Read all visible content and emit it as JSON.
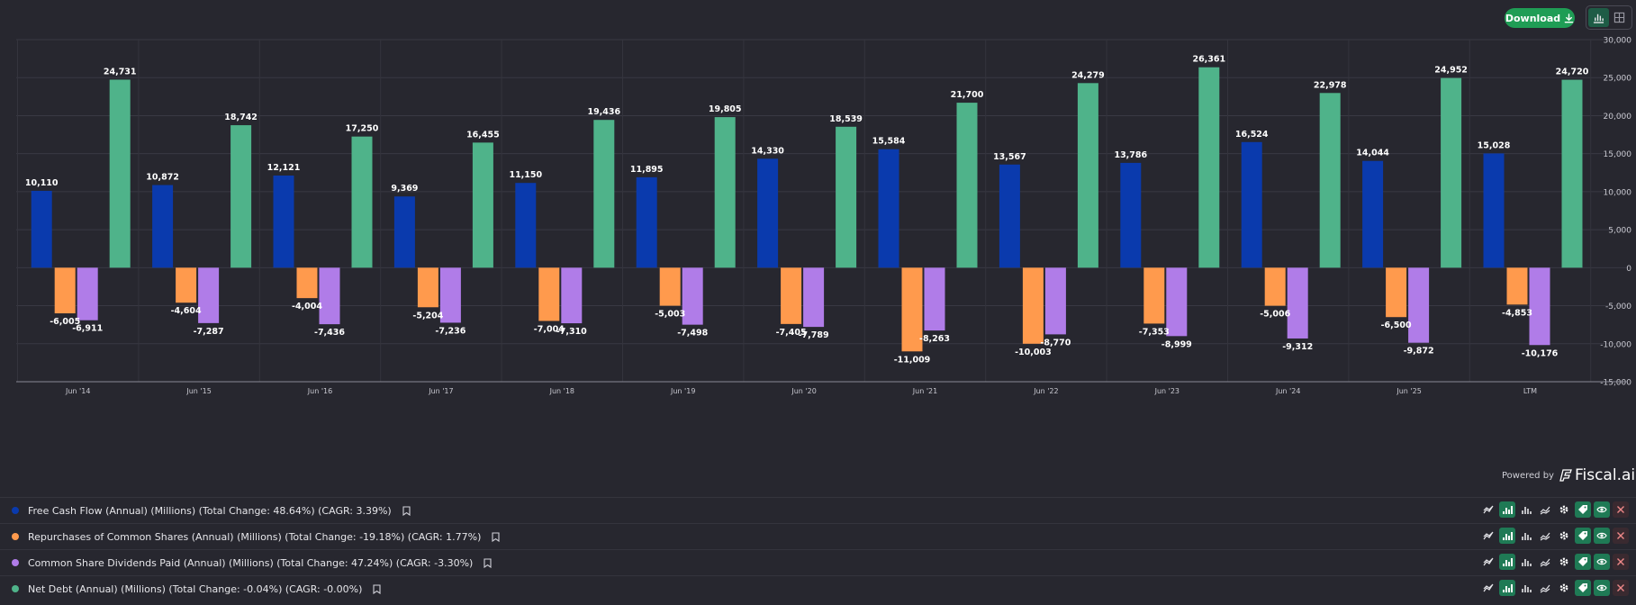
{
  "toolbar": {
    "download_label": "Download"
  },
  "branding": {
    "powered_by": "Powered by",
    "brand_name": "Fiscal.ai"
  },
  "chart_data": {
    "type": "bar",
    "categories": [
      "Jun '14",
      "Jun '15",
      "Jun '16",
      "Jun '17",
      "Jun '18",
      "Jun '19",
      "Jun '20",
      "Jun '21",
      "Jun '22",
      "Jun '23",
      "Jun '24",
      "Jun '25",
      "LTM"
    ],
    "ylim": [
      -15000,
      30000
    ],
    "yticks": [
      30000,
      25000,
      20000,
      15000,
      10000,
      5000,
      0,
      -5000,
      -10000,
      -15000
    ],
    "ytick_labels": [
      "30,000",
      "25,000",
      "20,000",
      "15,000",
      "10,000",
      "5,000",
      "0",
      "-5,000",
      "-10,000",
      "-15,000"
    ],
    "grid": true,
    "series": [
      {
        "name": "Free Cash Flow (Annual) (Millions) (Total Change: 48.64%) (CAGR: 3.39%)",
        "color": "#0a3aad",
        "values": [
          10110,
          10872,
          12121,
          9369,
          11150,
          11895,
          14330,
          15584,
          13567,
          13786,
          16524,
          14044,
          15028
        ],
        "labels": [
          "10,110",
          "10,872",
          "12,121",
          "9,369",
          "11,150",
          "11,895",
          "14,330",
          "15,584",
          "13,567",
          "13,786",
          "16,524",
          "14,044",
          "15,028"
        ]
      },
      {
        "name": "Repurchases of Common Shares (Annual) (Millions) (Total Change: -19.18%) (CAGR: 1.77%)",
        "color": "#ff9a4d",
        "values": [
          -6005,
          -4604,
          -4004,
          -5204,
          -7004,
          -5003,
          -7405,
          -11009,
          -10003,
          -7353,
          -5006,
          -6500,
          -4853
        ],
        "labels": [
          "-6,005",
          "-4,604",
          "-4,004",
          "-5,204",
          "-7,004",
          "-5,003",
          "-7,405",
          "-11,009",
          "-10,003",
          "-7,353",
          "-5,006",
          "-6,500",
          "-4,853"
        ]
      },
      {
        "name": "Common Share Dividends Paid (Annual) (Millions) (Total Change: 47.24%) (CAGR: -3.30%)",
        "color": "#b07ce8",
        "values": [
          -6911,
          -7287,
          -7436,
          -7236,
          -7310,
          -7498,
          -7789,
          -8263,
          -8770,
          -8999,
          -9312,
          -9872,
          -10176
        ],
        "labels": [
          "-6,911",
          "-7,287",
          "-7,436",
          "-7,236",
          "-7,310",
          "-7,498",
          "-7,789",
          "-8,263",
          "-8,770",
          "-8,999",
          "-9,312",
          "-9,872",
          "-10,176"
        ]
      },
      {
        "name": "Net Debt (Annual) (Millions) (Total Change: -0.04%) (CAGR: -0.00%)",
        "color": "#4fb38a",
        "values": [
          24731,
          18742,
          17250,
          16455,
          19436,
          19805,
          18539,
          21700,
          24279,
          26361,
          22978,
          24952,
          24720
        ],
        "labels": [
          "24,731",
          "18,742",
          "17,250",
          "16,455",
          "19,436",
          "19,805",
          "18,539",
          "21,700",
          "24,279",
          "26,361",
          "22,978",
          "24,952",
          "24,720"
        ]
      }
    ]
  },
  "legend": [
    {
      "label": "Free Cash Flow (Annual) (Millions) (Total Change: 48.64%) (CAGR: 3.39%)",
      "color": "#0a3aad"
    },
    {
      "label": "Repurchases of Common Shares (Annual) (Millions) (Total Change: -19.18%) (CAGR: 1.77%)",
      "color": "#ff9a4d"
    },
    {
      "label": "Common Share Dividends Paid (Annual) (Millions) (Total Change: 47.24%) (CAGR: -3.30%)",
      "color": "#b07ce8"
    },
    {
      "label": "Net Debt (Annual) (Millions) (Total Change: -0.04%) (CAGR: -0.00%)",
      "color": "#4fb38a"
    }
  ],
  "row_tool_icons": [
    "trend-icon",
    "bar-chart-icon",
    "column-chart-icon",
    "line-chart-icon",
    "settings-icon",
    "tag-icon",
    "eye-icon",
    "close-icon"
  ]
}
